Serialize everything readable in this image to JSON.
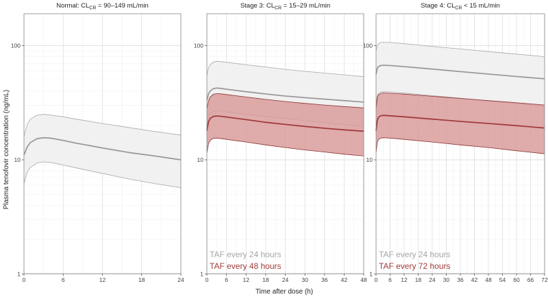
{
  "figure": {
    "ylabel": "Plasma tenofovir concentration (ng/mL)",
    "xlabel": "Time after dose (h)"
  },
  "colors": {
    "reference_line": "#9a9a9a",
    "reference_band": "#f1f1f1",
    "reference_band_edge": "#a8a8a8",
    "comparison_line": "#a23b3b",
    "comparison_band": "#d89898",
    "comparison_band_edge": "#8f2f2f",
    "legend_reference": "#a6a6a6",
    "legend_comparison": "#a23b3b",
    "grid_major": "#e2e2e2",
    "grid_minor": "#f0f0f0",
    "panel_border": "#888888"
  },
  "chart_data": [
    {
      "type": "area",
      "title_prefix": "Normal: CL",
      "title_sub": "CR",
      "title_suffix": " = 90–149 mL/min",
      "xlim": [
        0,
        24
      ],
      "xticks": [
        0,
        6,
        12,
        18,
        24
      ],
      "ylim": [
        1,
        200
      ],
      "yscale": "log",
      "yticks": [
        1,
        10,
        100
      ],
      "legend": [],
      "series": [
        {
          "name": "TAF every 24 hours",
          "style": "reference",
          "x": [
            0,
            0.5,
            1,
            2,
            3,
            4,
            6,
            8,
            12,
            16,
            20,
            24
          ],
          "median": [
            11.0,
            13.0,
            14.2,
            15.3,
            15.6,
            15.5,
            14.8,
            14.0,
            12.7,
            11.6,
            10.8,
            10.0
          ],
          "lower": [
            6.2,
            7.8,
            8.6,
            9.4,
            9.6,
            9.5,
            9.0,
            8.5,
            7.6,
            6.8,
            6.2,
            5.7
          ],
          "upper": [
            16.0,
            20.5,
            22.8,
            24.6,
            25.0,
            24.7,
            23.8,
            22.7,
            20.8,
            19.2,
            17.7,
            16.5
          ]
        }
      ]
    },
    {
      "type": "area",
      "title_prefix": "Stage 3: CL",
      "title_sub": "CR",
      "title_suffix": " = 15–29 mL/min",
      "xlim": [
        0,
        48
      ],
      "xticks": [
        0,
        6,
        12,
        18,
        24,
        30,
        36,
        42,
        48
      ],
      "ylim": [
        1,
        200
      ],
      "yscale": "log",
      "yticks": [
        1,
        10,
        100
      ],
      "legend": [
        {
          "label": "TAF every 24 hours",
          "style": "reference"
        },
        {
          "label": "TAF every 48 hours",
          "style": "comparison"
        }
      ],
      "series": [
        {
          "name": "TAF every 24 hours",
          "style": "reference",
          "x": [
            0,
            0.5,
            1,
            2,
            3,
            4,
            6,
            12,
            18,
            24,
            30,
            36,
            42,
            48
          ],
          "median": [
            33,
            38,
            40,
            42,
            42.5,
            42.3,
            41.5,
            39.5,
            37.7,
            36.2,
            35.0,
            34.0,
            33.0,
            32.0
          ],
          "lower": [
            20,
            24,
            25.5,
            26.5,
            27,
            26.8,
            26.3,
            25.0,
            24.0,
            23.0,
            22.0,
            21.2,
            20.4,
            19.5
          ],
          "upper": [
            55,
            64,
            68,
            72,
            73,
            72.6,
            71.5,
            68.0,
            65.0,
            62.0,
            59.5,
            57.5,
            55.5,
            53.5
          ]
        },
        {
          "name": "TAF every 48 hours",
          "style": "comparison",
          "x": [
            0,
            0.5,
            1,
            2,
            3,
            4,
            6,
            12,
            18,
            24,
            30,
            36,
            42,
            48
          ],
          "median": [
            18,
            21.5,
            23,
            24,
            24.2,
            24.1,
            23.7,
            22.5,
            21.3,
            20.4,
            19.6,
            18.9,
            18.3,
            17.8
          ],
          "lower": [
            11.5,
            13.8,
            14.8,
            15.4,
            15.5,
            15.4,
            15.1,
            14.3,
            13.5,
            12.8,
            12.2,
            11.7,
            11.2,
            10.8
          ],
          "upper": [
            28,
            33,
            35.5,
            37.5,
            38,
            37.9,
            37.3,
            35.5,
            33.8,
            32.4,
            31.2,
            30.2,
            29.3,
            28.5
          ]
        }
      ]
    },
    {
      "type": "area",
      "title_prefix": "Stage 4: CL",
      "title_sub": "CR",
      "title_suffix": " < 15 mL/min",
      "xlim": [
        0,
        72
      ],
      "xticks": [
        0,
        6,
        12,
        18,
        24,
        30,
        36,
        42,
        48,
        54,
        60,
        66,
        72
      ],
      "ylim": [
        1,
        200
      ],
      "yscale": "log",
      "yticks": [
        1,
        10,
        100
      ],
      "legend": [
        {
          "label": "TAF every 24 hours",
          "style": "reference"
        },
        {
          "label": "TAF every 72 hours",
          "style": "comparison"
        }
      ],
      "series": [
        {
          "name": "TAF every 24 hours",
          "style": "reference",
          "x": [
            0,
            0.5,
            1,
            2,
            3,
            6,
            12,
            24,
            36,
            48,
            60,
            72
          ],
          "median": [
            56,
            63,
            65.5,
            67,
            67.3,
            67.0,
            65.5,
            62.3,
            59.2,
            56.3,
            53.7,
            51.2
          ],
          "lower": [
            31,
            36,
            38,
            39.2,
            39.5,
            39.3,
            38.4,
            36.5,
            34.6,
            32.8,
            31.1,
            29.5
          ],
          "upper": [
            90,
            100,
            104,
            106.5,
            107,
            106.5,
            104,
            98.5,
            93.5,
            88.7,
            84.3,
            80.0
          ]
        },
        {
          "name": "TAF every 72 hours",
          "style": "comparison",
          "x": [
            0,
            0.5,
            1,
            2,
            3,
            6,
            12,
            24,
            36,
            48,
            60,
            72
          ],
          "median": [
            18,
            22,
            23.5,
            24.3,
            24.5,
            24.3,
            23.8,
            22.7,
            21.7,
            20.8,
            19.9,
            19.0
          ],
          "lower": [
            11.5,
            14.2,
            15.0,
            15.5,
            15.6,
            15.5,
            15.1,
            14.3,
            13.5,
            12.8,
            12.0,
            11.3
          ],
          "upper": [
            28,
            35,
            37,
            38.2,
            38.5,
            38.3,
            37.6,
            36.0,
            34.5,
            33.0,
            31.6,
            30.2
          ]
        }
      ]
    }
  ]
}
